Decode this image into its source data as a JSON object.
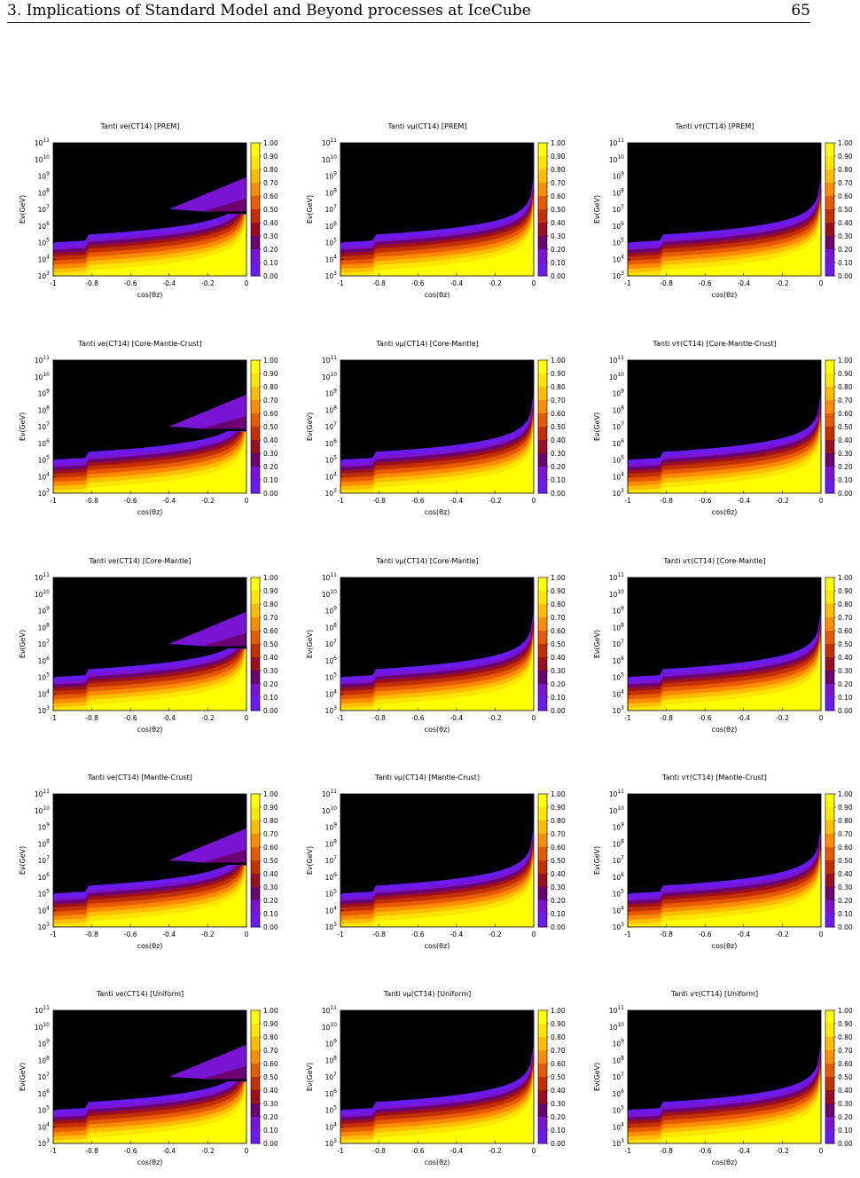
{
  "header": {
    "section": "3. Implications of Standard Model and Beyond processes at IceCube",
    "page": "65"
  },
  "colorbar": {
    "labels": [
      "1.00",
      "0.90",
      "0.80",
      "0.70",
      "0.60",
      "0.50",
      "0.40",
      "0.30",
      "0.20",
      "0.10",
      "0.00"
    ],
    "colors": [
      "#ffff00",
      "#ffe600",
      "#ffbd00",
      "#ff8c00",
      "#e85a00",
      "#c23000",
      "#9a0f1f",
      "#6b0070",
      "#7a14d4",
      "#6a1cf0",
      "#000000"
    ]
  },
  "axes": {
    "xlabel": "cos(θz)",
    "ylabel": "Eν(GeV)",
    "xticks": [
      "-1",
      "-0.8",
      "-0.6",
      "-0.4",
      "-0.2",
      "0"
    ],
    "yticks": [
      "103",
      "104",
      "105",
      "106",
      "107",
      "108",
      "109",
      "1010",
      "1011"
    ]
  },
  "chart_data": [
    {
      "type": "heatmap",
      "title": "Tanti νe(CT14) [PREM]",
      "flavor": "e",
      "model": "PREM",
      "xlim": [
        -1,
        0
      ],
      "ylim_log10": [
        3,
        11
      ]
    },
    {
      "type": "heatmap",
      "title": "Tanti νμ(CT14) [PREM]",
      "flavor": "mu",
      "model": "PREM",
      "xlim": [
        -1,
        0
      ],
      "ylim_log10": [
        3,
        11
      ]
    },
    {
      "type": "heatmap",
      "title": "Tanti ντ(CT14) [PREM]",
      "flavor": "tau",
      "model": "PREM",
      "xlim": [
        -1,
        0
      ],
      "ylim_log10": [
        3,
        11
      ]
    },
    {
      "type": "heatmap",
      "title": "Tanti νe(CT14) [Core-Mantle-Crust]",
      "flavor": "e",
      "model": "Core-Mantle-Crust",
      "xlim": [
        -1,
        0
      ],
      "ylim_log10": [
        3,
        11
      ]
    },
    {
      "type": "heatmap",
      "title": "Tanti νμ(CT14) [Core-Mantle]",
      "flavor": "mu",
      "model": "Core-Mantle",
      "xlim": [
        -1,
        0
      ],
      "ylim_log10": [
        3,
        11
      ]
    },
    {
      "type": "heatmap",
      "title": "Tanti ντ(CT14) [Core-Mantle-Crust]",
      "flavor": "tau",
      "model": "Core-Mantle-Crust",
      "xlim": [
        -1,
        0
      ],
      "ylim_log10": [
        3,
        11
      ]
    },
    {
      "type": "heatmap",
      "title": "Tanti νe(CT14) [Core-Mantle]",
      "flavor": "e",
      "model": "Core-Mantle",
      "xlim": [
        -1,
        0
      ],
      "ylim_log10": [
        3,
        11
      ]
    },
    {
      "type": "heatmap",
      "title": "Tanti νμ(CT14) [Core-Mantle]",
      "flavor": "mu",
      "model": "Core-Mantle",
      "xlim": [
        -1,
        0
      ],
      "ylim_log10": [
        3,
        11
      ]
    },
    {
      "type": "heatmap",
      "title": "Tanti ντ(CT14) [Core-Mantle]",
      "flavor": "tau",
      "model": "Core-Mantle",
      "xlim": [
        -1,
        0
      ],
      "ylim_log10": [
        3,
        11
      ]
    },
    {
      "type": "heatmap",
      "title": "Tanti νe(CT14) [Mantle-Crust]",
      "flavor": "e",
      "model": "Mantle-Crust",
      "xlim": [
        -1,
        0
      ],
      "ylim_log10": [
        3,
        11
      ]
    },
    {
      "type": "heatmap",
      "title": "Tanti νμ(CT14) [Mantle-Crust]",
      "flavor": "mu",
      "model": "Mantle-Crust",
      "xlim": [
        -1,
        0
      ],
      "ylim_log10": [
        3,
        11
      ]
    },
    {
      "type": "heatmap",
      "title": "Tanti ντ(CT14) [Mantle-Crust]",
      "flavor": "tau",
      "model": "Mantle-Crust",
      "xlim": [
        -1,
        0
      ],
      "ylim_log10": [
        3,
        11
      ]
    },
    {
      "type": "heatmap",
      "title": "Tanti νe(CT14) [Uniform]",
      "flavor": "e",
      "model": "Uniform",
      "xlim": [
        -1,
        0
      ],
      "ylim_log10": [
        3,
        11
      ]
    },
    {
      "type": "heatmap",
      "title": "Tanti νμ(CT14) [Uniform]",
      "flavor": "mu",
      "model": "Uniform",
      "xlim": [
        -1,
        0
      ],
      "ylim_log10": [
        3,
        11
      ]
    },
    {
      "type": "heatmap",
      "title": "Tanti ντ(CT14) [Uniform]",
      "flavor": "tau",
      "model": "Uniform",
      "xlim": [
        -1,
        0
      ],
      "ylim_log10": [
        3,
        11
      ]
    }
  ]
}
